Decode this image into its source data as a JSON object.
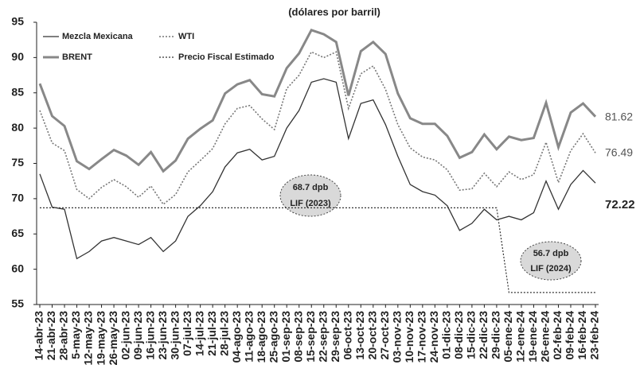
{
  "chart_data": {
    "type": "line",
    "title": "(dólares por barril)",
    "categories": [
      "14-abr-23",
      "21-abr-23",
      "28-abr-23",
      "5-may-23",
      "12-may-23",
      "19-may-23",
      "26-may-23",
      "02-jun-23",
      "09-jun-23",
      "16-jun-23",
      "23-jun-23",
      "30-jun-23",
      "07-jul-23",
      "14-jul-23",
      "21-jul-23",
      "28-jul-23",
      "04-ago-23",
      "11-ago-23",
      "18-ago-23",
      "25-ago-23",
      "01-sep-23",
      "08-sep-23",
      "15-sep-23",
      "22-sep-23",
      "29-sep-23",
      "06-oct-23",
      "13-oct-23",
      "20-oct-23",
      "27-oct-23",
      "03-nov-23",
      "10-nov-23",
      "17-nov-23",
      "24-nov-23",
      "01-dic-23",
      "08-dic-23",
      "15-dic-23",
      "22-dic-23",
      "29-dic-23",
      "05-ene-24",
      "12-ene-24",
      "19-ene-24",
      "26-ene-24",
      "02-feb-24",
      "09-feb-24",
      "16-feb-24",
      "23-feb-24"
    ],
    "series": [
      {
        "name": "Mezcla Mexicana",
        "color": "#333333",
        "width": 1.3,
        "dash": "solid",
        "values": [
          73.5,
          68.8,
          68.5,
          61.5,
          62.5,
          64.0,
          64.5,
          64.0,
          63.5,
          64.5,
          62.5,
          64.0,
          67.5,
          69.0,
          71.0,
          74.5,
          76.5,
          77.0,
          75.5,
          76.0,
          80.0,
          82.5,
          86.5,
          87.0,
          86.5,
          78.5,
          83.5,
          84.0,
          80.5,
          76.0,
          72.0,
          71.0,
          70.5,
          69.0,
          65.5,
          66.5,
          68.5,
          67.0,
          67.5,
          67.0,
          68.0,
          72.5,
          68.5,
          72.0,
          74.0,
          72.22
        ]
      },
      {
        "name": "WTI",
        "color": "#777777",
        "width": 1.6,
        "dash": "dotted",
        "values": [
          82.5,
          77.9,
          76.8,
          71.3,
          70.0,
          71.6,
          72.7,
          71.7,
          70.2,
          71.8,
          69.2,
          70.6,
          73.8,
          75.4,
          77.1,
          80.6,
          82.8,
          83.2,
          81.3,
          79.8,
          85.6,
          87.5,
          90.8,
          90.0,
          90.8,
          82.8,
          87.7,
          88.8,
          85.5,
          80.5,
          77.2,
          75.9,
          75.5,
          74.1,
          71.2,
          71.4,
          73.6,
          71.7,
          73.8,
          72.7,
          73.4,
          78.0,
          72.3,
          76.8,
          79.2,
          76.49
        ]
      },
      {
        "name": "BRENT",
        "color": "#888888",
        "width": 3,
        "dash": "solid",
        "values": [
          86.3,
          81.7,
          80.3,
          75.3,
          74.2,
          75.6,
          76.9,
          76.1,
          74.8,
          76.6,
          73.9,
          75.4,
          78.5,
          79.9,
          81.1,
          84.9,
          86.2,
          86.8,
          84.8,
          84.5,
          88.5,
          90.6,
          93.9,
          93.3,
          92.2,
          84.6,
          90.9,
          92.2,
          90.5,
          84.9,
          81.4,
          80.6,
          80.6,
          78.9,
          75.8,
          76.6,
          79.1,
          77.0,
          78.8,
          78.3,
          78.6,
          83.6,
          77.3,
          82.2,
          83.5,
          81.62
        ]
      },
      {
        "name": "Precio Fiscal Estimado",
        "color": "#333333",
        "width": 1.2,
        "dash": "dotted",
        "values": [
          68.7,
          68.7,
          68.7,
          68.7,
          68.7,
          68.7,
          68.7,
          68.7,
          68.7,
          68.7,
          68.7,
          68.7,
          68.7,
          68.7,
          68.7,
          68.7,
          68.7,
          68.7,
          68.7,
          68.7,
          68.7,
          68.7,
          68.7,
          68.7,
          68.7,
          68.7,
          68.7,
          68.7,
          68.7,
          68.7,
          68.7,
          68.7,
          68.7,
          68.7,
          68.7,
          68.7,
          68.7,
          68.7,
          56.7,
          56.7,
          56.7,
          56.7,
          56.7,
          56.7,
          56.7,
          56.7
        ]
      }
    ],
    "end_label_series": [
      2,
      1,
      0
    ],
    "annotations": [
      "68.7 dpb",
      "LIF (2023)",
      "56.7 dpb",
      "LIF (2024)"
    ],
    "ylim": [
      55,
      95
    ],
    "yticks": [
      55,
      60,
      65,
      70,
      75,
      80,
      85,
      90,
      95
    ],
    "grid": false
  }
}
